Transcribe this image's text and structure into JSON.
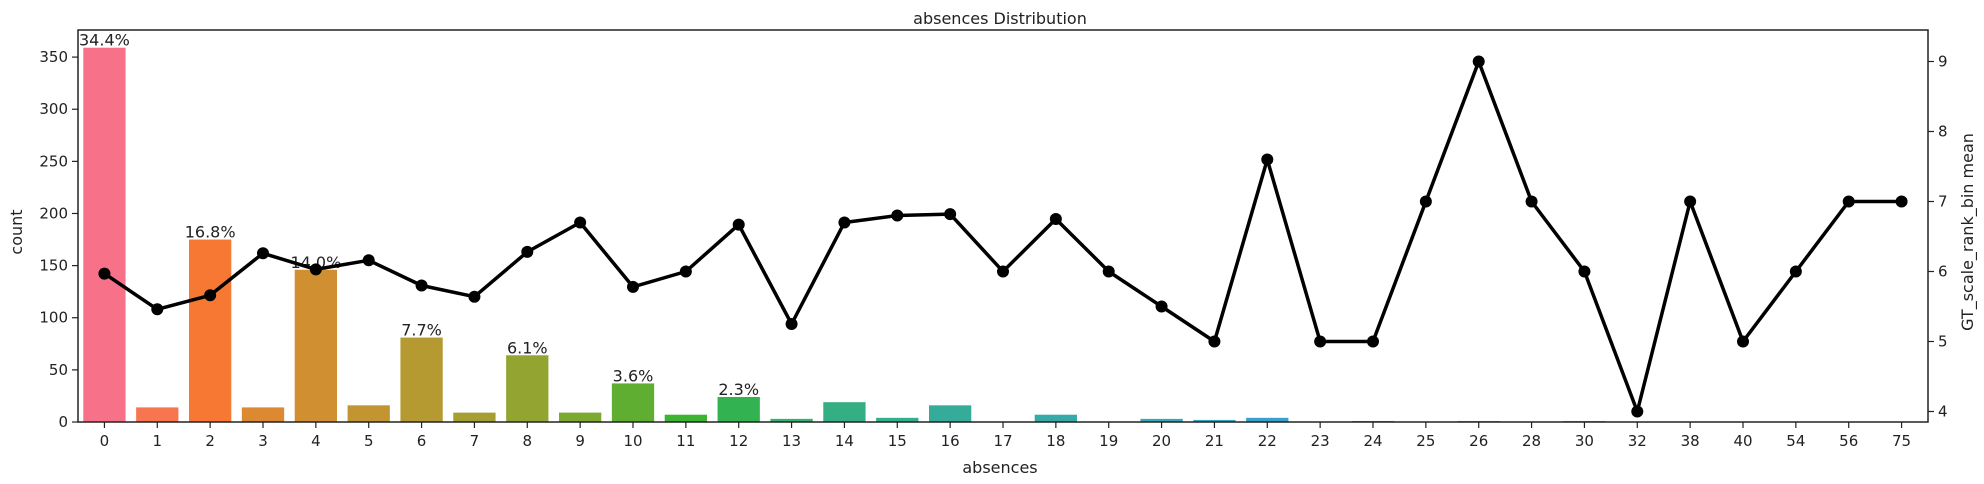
{
  "chart_data": {
    "type": "bar",
    "title": "absences Distribution",
    "xlabel": "absences",
    "ylabel": "count",
    "y2label": "GT_scale_rank_bin mean",
    "categories": [
      "0",
      "1",
      "2",
      "3",
      "4",
      "5",
      "6",
      "7",
      "8",
      "9",
      "10",
      "11",
      "12",
      "13",
      "14",
      "15",
      "16",
      "17",
      "18",
      "19",
      "20",
      "21",
      "22",
      "23",
      "24",
      "25",
      "26",
      "28",
      "30",
      "32",
      "38",
      "40",
      "54",
      "56",
      "75"
    ],
    "series": [
      {
        "type": "bar",
        "axis": "left",
        "values": [
          359,
          14,
          175,
          14,
          146,
          16,
          81,
          9,
          64,
          9,
          37,
          7,
          24,
          3,
          19,
          4,
          16,
          0,
          7,
          0,
          3,
          2,
          4,
          0,
          1,
          0,
          1,
          0,
          1,
          0,
          0,
          0,
          0,
          0,
          0
        ]
      },
      {
        "type": "line",
        "axis": "right",
        "values": [
          5.97,
          5.46,
          5.66,
          6.26,
          6.03,
          6.16,
          5.8,
          5.64,
          6.28,
          6.7,
          5.78,
          6.0,
          6.67,
          5.25,
          6.7,
          6.8,
          6.82,
          6.0,
          6.75,
          6.0,
          5.5,
          5.0,
          7.6,
          5.0,
          5.0,
          7.0,
          9.0,
          7.0,
          6.0,
          4.0,
          7.0,
          5.0,
          6.0,
          7.0,
          7.0
        ]
      }
    ],
    "bar_labels": [
      {
        "index": 0,
        "text": "34.4%"
      },
      {
        "index": 2,
        "text": "16.8%"
      },
      {
        "index": 4,
        "text": "14.0%"
      },
      {
        "index": 6,
        "text": "7.7%"
      },
      {
        "index": 8,
        "text": "6.1%"
      },
      {
        "index": 10,
        "text": "3.6%"
      },
      {
        "index": 12,
        "text": "2.3%"
      }
    ],
    "bar_colors": [
      "#f77189",
      "#f7754f",
      "#f77832",
      "#dc8932",
      "#d08f31",
      "#c39532",
      "#b49a31",
      "#a59f31",
      "#93a431",
      "#7ba931",
      "#5fad31",
      "#3cb331",
      "#32b251",
      "#33b26f",
      "#34af83",
      "#34ae8f",
      "#35ac99",
      "#36aaa2",
      "#36a9a9",
      "#37a7b0",
      "#38a5b8",
      "#39a4c0",
      "#3aa1cc",
      "#3d9ed9",
      "#5096e8",
      "#7a8ff4",
      "#9c87f4",
      "#b37ff4",
      "#cd76f4",
      "#e56df4",
      "#f46ae4",
      "#f56dcc",
      "#f56fb9",
      "#f670a8",
      "#f77198"
    ],
    "line_color": "#000000",
    "ylim": [
      0,
      376
    ],
    "y_ticks": [
      0,
      50,
      100,
      150,
      200,
      250,
      300,
      350
    ],
    "y2lim": [
      3.85,
      9.45
    ],
    "y2_ticks": [
      4,
      5,
      6,
      7,
      8,
      9
    ],
    "grid": false,
    "legend": "none"
  }
}
